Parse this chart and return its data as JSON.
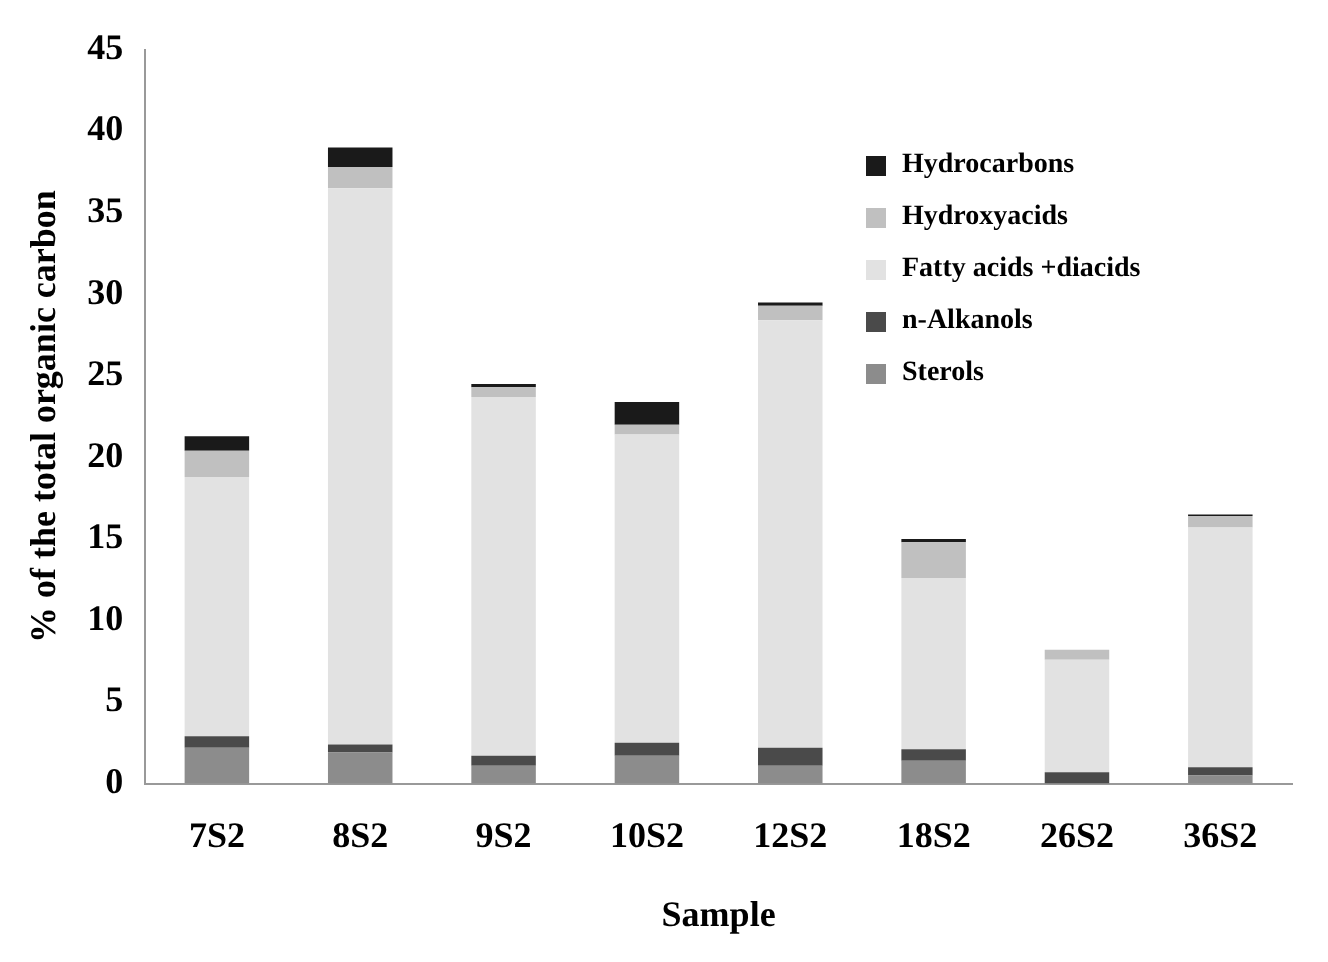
{
  "chart_data": {
    "type": "bar",
    "stacked": true,
    "xlabel": "Sample",
    "ylabel": "% of the total organic carbon",
    "categories": [
      "7S2",
      "8S2",
      "9S2",
      "10S2",
      "12S2",
      "18S2",
      "26S2",
      "36S2"
    ],
    "series": [
      {
        "name": "Sterols",
        "color": "#8c8c8c",
        "values": [
          2.2,
          1.9,
          1.1,
          1.7,
          1.1,
          1.4,
          0,
          0.5
        ]
      },
      {
        "name": "n-Alkanols",
        "color": "#4a4a4a",
        "values": [
          0.7,
          0.5,
          0.6,
          0.8,
          1.1,
          0.7,
          0.7,
          0.5
        ]
      },
      {
        "name": "Fatty acids +diacids",
        "color": "#e2e2e2",
        "values": [
          15.9,
          34.1,
          22.0,
          18.9,
          26.2,
          10.5,
          6.9,
          14.7
        ]
      },
      {
        "name": "Hydroxyacids",
        "color": "#c0c0c0",
        "values": [
          1.6,
          1.3,
          0.6,
          0.6,
          0.9,
          2.2,
          0.6,
          0.7
        ]
      },
      {
        "name": "Hydrocarbons",
        "color": "#1a1a1a",
        "values": [
          0.9,
          1.2,
          0.2,
          1.4,
          0.2,
          0.2,
          0,
          0.1
        ]
      }
    ],
    "ylim": [
      0,
      45
    ],
    "yticks": [
      0,
      5,
      10,
      15,
      20,
      25,
      30,
      35,
      40,
      45
    ],
    "grid": false,
    "legend": "top right"
  }
}
